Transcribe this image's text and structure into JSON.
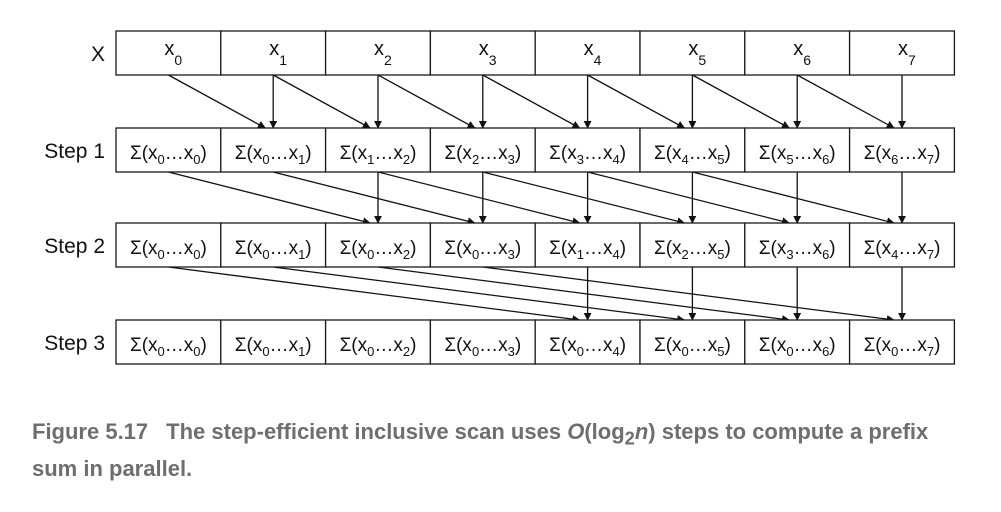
{
  "figure": {
    "rows": [
      {
        "label": "X",
        "cells": [
          {
            "base": "x",
            "sub": "0"
          },
          {
            "base": "x",
            "sub": "1"
          },
          {
            "base": "x",
            "sub": "2"
          },
          {
            "base": "x",
            "sub": "3"
          },
          {
            "base": "x",
            "sub": "4"
          },
          {
            "base": "x",
            "sub": "5"
          },
          {
            "base": "x",
            "sub": "6"
          },
          {
            "base": "x",
            "sub": "7"
          }
        ]
      },
      {
        "label": "Step 1",
        "cells": [
          {
            "from": "0",
            "to": "0"
          },
          {
            "from": "0",
            "to": "1"
          },
          {
            "from": "1",
            "to": "2"
          },
          {
            "from": "2",
            "to": "3"
          },
          {
            "from": "3",
            "to": "4"
          },
          {
            "from": "4",
            "to": "5"
          },
          {
            "from": "5",
            "to": "6"
          },
          {
            "from": "6",
            "to": "7"
          }
        ]
      },
      {
        "label": "Step 2",
        "cells": [
          {
            "from": "0",
            "to": "0"
          },
          {
            "from": "0",
            "to": "1"
          },
          {
            "from": "0",
            "to": "2"
          },
          {
            "from": "0",
            "to": "3"
          },
          {
            "from": "1",
            "to": "4"
          },
          {
            "from": "2",
            "to": "5"
          },
          {
            "from": "3",
            "to": "6"
          },
          {
            "from": "4",
            "to": "7"
          }
        ]
      },
      {
        "label": "Step 3",
        "cells": [
          {
            "from": "0",
            "to": "0"
          },
          {
            "from": "0",
            "to": "1"
          },
          {
            "from": "0",
            "to": "2"
          },
          {
            "from": "0",
            "to": "3"
          },
          {
            "from": "0",
            "to": "4"
          },
          {
            "from": "0",
            "to": "5"
          },
          {
            "from": "0",
            "to": "6"
          },
          {
            "from": "0",
            "to": "7"
          }
        ]
      }
    ],
    "arrows": [
      {
        "from_row": 0,
        "to_row": 1,
        "offset": 1
      },
      {
        "from_row": 1,
        "to_row": 2,
        "offset": 2
      },
      {
        "from_row": 2,
        "to_row": 3,
        "offset": 4
      }
    ]
  },
  "caption": {
    "figure_number": "Figure 5.17",
    "text_before": "The step-efficient inclusive scan uses ",
    "big_o": "O",
    "paren_open": "(log",
    "log_base": "2",
    "n": "n",
    "paren_close": ")",
    "text_after": " steps to compute a prefix sum in parallel."
  }
}
